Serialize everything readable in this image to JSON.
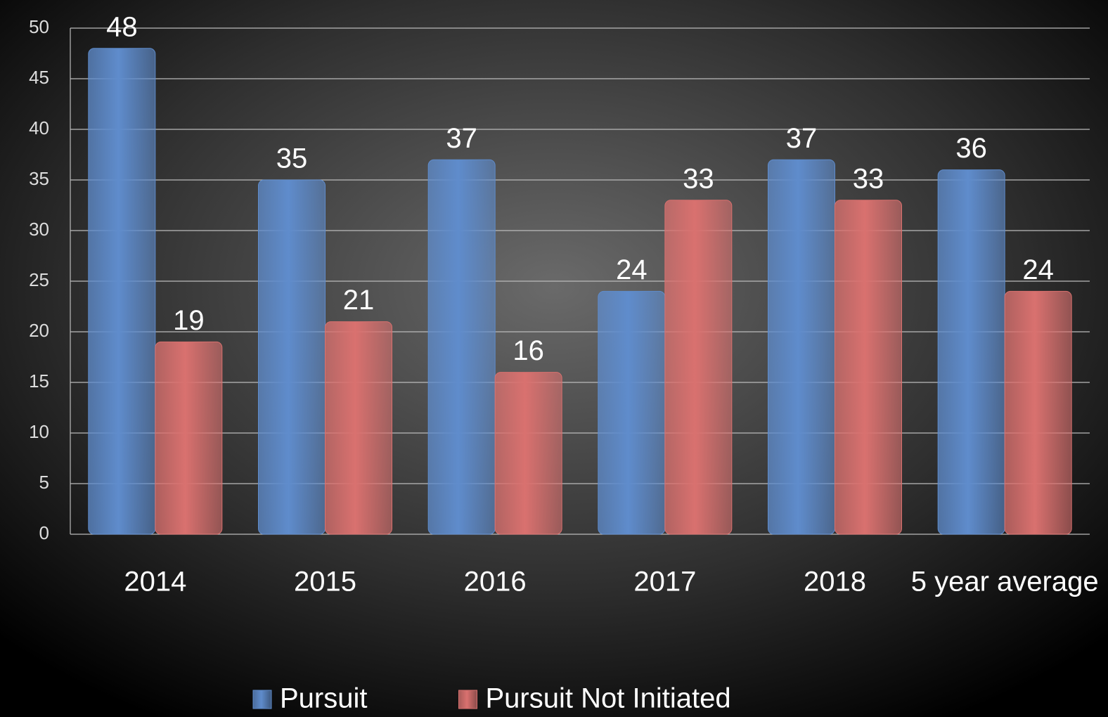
{
  "chart_data": {
    "type": "bar",
    "categories": [
      "2014",
      "2015",
      "2016",
      "2017",
      "2018",
      "5 year average"
    ],
    "series": [
      {
        "name": "Pursuit",
        "color": "#5f8ccc",
        "values": [
          48,
          35,
          37,
          24,
          37,
          36
        ]
      },
      {
        "name": "Pursuit Not Initiated",
        "color": "#d9716f",
        "values": [
          19,
          21,
          16,
          33,
          33,
          24
        ]
      }
    ],
    "ylim": [
      0,
      50
    ],
    "yticks": [
      0,
      5,
      10,
      15,
      20,
      25,
      30,
      35,
      40,
      45,
      50
    ],
    "grid": true,
    "legend": "bottom"
  }
}
